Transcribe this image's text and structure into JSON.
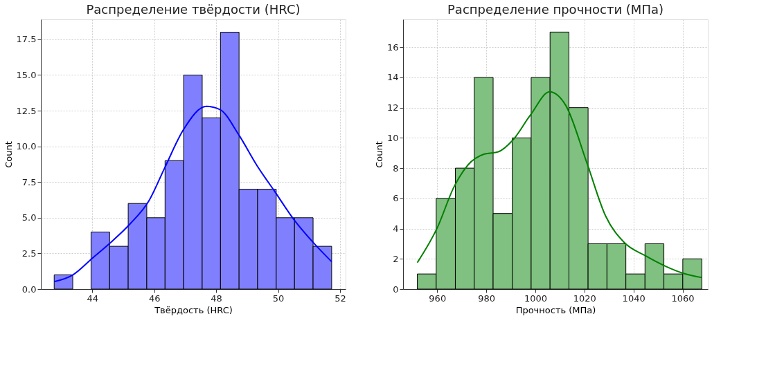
{
  "chart_data": [
    {
      "type": "histogram",
      "title": "Распределение твёрдости (HRC)",
      "xlabel": "Твёрдость (HRC)",
      "ylabel": "Count",
      "bins": [
        42.77,
        43.37,
        43.96,
        44.56,
        45.16,
        45.76,
        46.35,
        46.95,
        47.55,
        48.14,
        48.74,
        49.34,
        49.94,
        50.53,
        51.13,
        51.73
      ],
      "values": [
        1,
        0,
        4,
        3,
        6,
        5,
        9,
        15,
        12,
        18,
        7,
        7,
        5,
        5,
        3
      ],
      "color": "#8080ff",
      "series": [
        {
          "type": "line",
          "color": "#0000ff",
          "x": [
            42.77,
            43.37,
            44.0,
            44.63,
            45.23,
            45.82,
            46.34,
            46.94,
            47.68,
            48.13,
            48.72,
            49.32,
            49.91,
            50.5,
            51.17,
            51.73
          ],
          "values": [
            0.52,
            0.99,
            2.16,
            3.33,
            4.59,
            6.15,
            8.5,
            11.16,
            12.8,
            12.57,
            10.85,
            8.65,
            6.78,
            4.9,
            3.18,
            1.92
          ]
        }
      ],
      "xlim": [
        42.34,
        52.18
      ],
      "xticks": [
        44,
        46,
        48,
        50,
        52
      ],
      "ylim": [
        0,
        18.9
      ],
      "yticks": [
        {
          "value": 0,
          "label": "0.0"
        },
        2.5,
        {
          "value": 5,
          "label": "5.0"
        },
        7.5,
        {
          "value": 10,
          "label": "10.0"
        },
        12.5,
        {
          "value": 15,
          "label": "15.0"
        },
        17.5
      ],
      "grid": true
    },
    {
      "type": "histogram",
      "title": "Распределение прочности (МПа)",
      "xlabel": "Прочность (МПа)",
      "ylabel": "Count",
      "bins": [
        951.9,
        959.6,
        967.4,
        975.1,
        982.8,
        990.6,
        998.3,
        1006.0,
        1013.7,
        1021.5,
        1029.2,
        1036.9,
        1044.7,
        1052.4,
        1060.1,
        1067.9
      ],
      "values": [
        1,
        6,
        8,
        14,
        5,
        10,
        14,
        17,
        12,
        3,
        3,
        1,
        3,
        1,
        2
      ],
      "color": "#80c080",
      "series": [
        {
          "type": "line",
          "color": "#008000",
          "x": [
            951.9,
            960,
            966.8,
            972.5,
            979.2,
            984.9,
            990.6,
            998.2,
            1005.8,
            1012.4,
            1021,
            1028.6,
            1036.2,
            1044.7,
            1053.3,
            1060.1,
            1067.9
          ],
          "values": [
            1.75,
            4.04,
            6.74,
            8.2,
            8.93,
            9.08,
            9.81,
            11.56,
            13.05,
            12.15,
            8.35,
            4.85,
            3.09,
            2.22,
            1.49,
            1.05,
            0.76
          ]
        }
      ],
      "xlim": [
        946.1,
        1070.3
      ],
      "xticks": [
        960,
        980,
        1000,
        1020,
        1040,
        1060
      ],
      "ylim": [
        0,
        17.84
      ],
      "yticks": [
        0,
        2,
        4,
        6,
        8,
        10,
        12,
        14,
        16
      ],
      "grid": true
    }
  ]
}
